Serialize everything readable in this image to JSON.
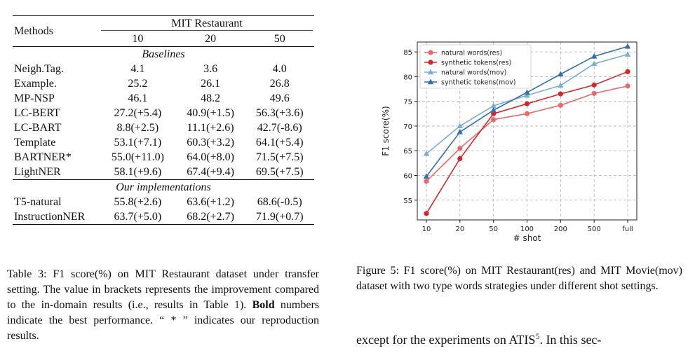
{
  "table": {
    "methods_header": "Methods",
    "dataset_header": "MIT Restaurant",
    "shot_headers": [
      "10",
      "20",
      "50"
    ],
    "sections": [
      {
        "title": "Baselines",
        "rows": [
          {
            "method": "Neigh.Tag.",
            "values": [
              "4.1",
              "3.6",
              "4.0"
            ]
          },
          {
            "method": "Example.",
            "values": [
              "25.2",
              "26.1",
              "26.8"
            ]
          },
          {
            "method": "MP-NSP",
            "values": [
              "46.1",
              "48.2",
              "49.6"
            ]
          },
          {
            "method": "LC-BERT",
            "values": [
              "27.2(+5.4)",
              "40.9(+1.5)",
              "56.3(+3.6)"
            ]
          },
          {
            "method": "LC-BART",
            "values": [
              "8.8(+2.5)",
              "11.1(+2.6)",
              "42.7(-8.6)"
            ]
          },
          {
            "method": "Template",
            "values": [
              "53.1(+7.1)",
              "60.3(+3.2)",
              "64.1(+5.4)"
            ]
          },
          {
            "method": "BARTNER*",
            "values": [
              "55.0(+11.0)",
              "64.0(+8.0)",
              "71.5(+7.5)"
            ]
          },
          {
            "method": "LightNER",
            "values": [
              "58.1(+9.6)",
              "67.4(+9.4)",
              "69.5(+7.5)"
            ]
          }
        ]
      },
      {
        "title": "Our implementations",
        "rows": [
          {
            "method": "T5-natural",
            "values": [
              "55.8(+2.6)",
              "63.6(+1.2)",
              "68.6(-0.5)"
            ]
          },
          {
            "method": "InstructionNER",
            "values": [
              "63.7(+5.0)",
              "68.2(+2.7)",
              "71.9(+0.7)"
            ],
            "bold": true
          }
        ]
      }
    ]
  },
  "table_caption": {
    "label": "Table 3: F1 score(%) on MIT Restaurant dataset under transfer setting. The value in brackets represents the improvement compared to the in-domain results (i.e., results in Table ",
    "ref": "1",
    "after_ref": "). ",
    "bold_word": "Bold",
    "rest": " numbers indicate the best performance. “ * ” indicates our reproduction results."
  },
  "figure_caption": "Figure 5: F1 score(%) on MIT Restaurant(res) and MIT Movie(mov) dataset with two type words strategies under different shot settings.",
  "body_text": {
    "before": "except for the experiments on ATIS",
    "footnote": "5",
    "after": ". In this sec-"
  },
  "chart_data": {
    "type": "line",
    "xlabel": "# shot",
    "ylabel": "F1 score(%)",
    "categories": [
      "10",
      "20",
      "50",
      "100",
      "200",
      "500",
      "full"
    ],
    "ylim": [
      51,
      87
    ],
    "yticks": [
      55,
      60,
      65,
      70,
      75,
      80,
      85
    ],
    "grid": true,
    "legend_position": "top-left",
    "series": [
      {
        "name": "natural words(res)",
        "color": "#e8696b",
        "marker": "circle",
        "values": [
          58.8,
          65.5,
          71.3,
          72.5,
          74.2,
          76.6,
          78.1
        ]
      },
      {
        "name": "synthetic tokens(res)",
        "color": "#d62728",
        "marker": "circle",
        "values": [
          52.3,
          63.4,
          72.5,
          74.5,
          76.5,
          78.3,
          81.0
        ]
      },
      {
        "name": "natural words(mov)",
        "color": "#7aaed6",
        "marker": "triangle",
        "values": [
          64.4,
          70.0,
          74.1,
          76.2,
          78.2,
          82.6,
          84.5
        ]
      },
      {
        "name": "synthetic tokens(mov)",
        "color": "#2f6fab",
        "marker": "triangle",
        "values": [
          59.8,
          68.8,
          73.2,
          76.8,
          80.5,
          84.1,
          86.1
        ]
      }
    ]
  }
}
